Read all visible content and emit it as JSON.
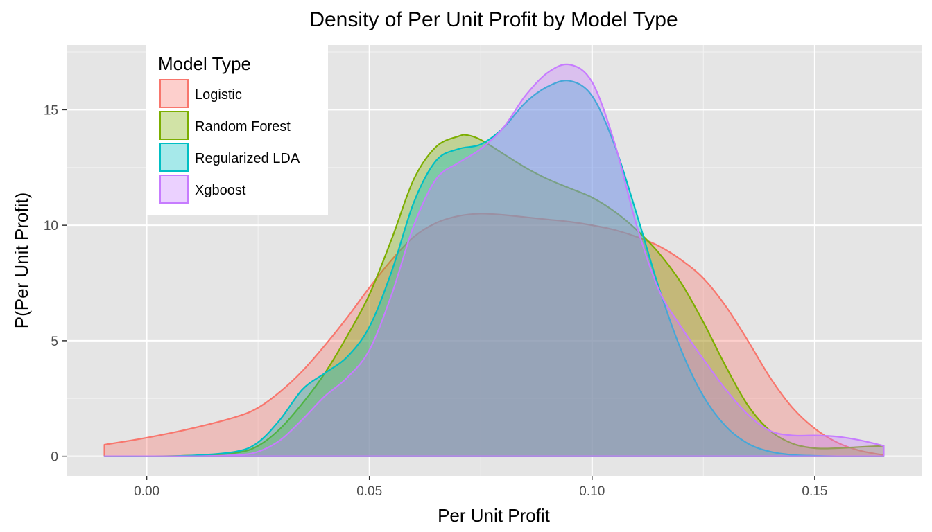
{
  "chart_data": {
    "type": "area",
    "title": "Density of Per Unit Profit by Model Type",
    "xlabel": "Per Unit Profit",
    "ylabel": "P(Per Unit Profit)",
    "xlim": [
      -0.018,
      0.174
    ],
    "ylim": [
      -0.85,
      17.8
    ],
    "x_ticks": [
      0.0,
      0.05,
      0.1,
      0.15
    ],
    "x_tick_labels": [
      "0.00",
      "0.05",
      "0.10",
      "0.15"
    ],
    "y_ticks": [
      0,
      5,
      10,
      15
    ],
    "y_tick_labels": [
      "0",
      "5",
      "10",
      "15"
    ],
    "grid": true,
    "legend": {
      "title": "Model Type",
      "placement": "top-left"
    },
    "series": [
      {
        "name": "Logistic",
        "color": "#F8766D",
        "x": [
          -0.0095,
          0.0,
          0.01,
          0.02,
          0.025,
          0.03,
          0.035,
          0.04,
          0.045,
          0.05,
          0.055,
          0.06,
          0.065,
          0.07,
          0.075,
          0.08,
          0.085,
          0.09,
          0.095,
          0.1,
          0.105,
          0.11,
          0.115,
          0.12,
          0.125,
          0.13,
          0.135,
          0.14,
          0.145,
          0.15,
          0.155,
          0.16,
          0.1655
        ],
        "y": [
          0.5,
          0.8,
          1.2,
          1.7,
          2.1,
          2.8,
          3.7,
          4.8,
          6.0,
          7.3,
          8.5,
          9.5,
          10.1,
          10.4,
          10.5,
          10.45,
          10.35,
          10.25,
          10.15,
          10.0,
          9.8,
          9.5,
          9.1,
          8.5,
          7.7,
          6.5,
          5.0,
          3.4,
          2.1,
          1.2,
          0.6,
          0.25,
          0.05
        ]
      },
      {
        "name": "Random Forest",
        "color": "#7CAE00",
        "x": [
          -0.0095,
          0.0,
          0.01,
          0.02,
          0.025,
          0.03,
          0.035,
          0.04,
          0.045,
          0.05,
          0.055,
          0.06,
          0.065,
          0.07,
          0.072,
          0.075,
          0.08,
          0.085,
          0.09,
          0.095,
          0.1,
          0.105,
          0.11,
          0.115,
          0.12,
          0.125,
          0.13,
          0.135,
          0.14,
          0.145,
          0.15,
          0.155,
          0.16,
          0.1655
        ],
        "y": [
          0.0,
          0.0,
          0.03,
          0.15,
          0.45,
          1.2,
          2.3,
          3.6,
          5.2,
          7.0,
          9.4,
          12.0,
          13.4,
          13.85,
          13.9,
          13.7,
          13.1,
          12.5,
          12.0,
          11.6,
          11.2,
          10.6,
          9.8,
          8.8,
          7.5,
          5.8,
          3.9,
          2.2,
          1.1,
          0.55,
          0.35,
          0.35,
          0.4,
          0.45
        ]
      },
      {
        "name": "Regularized LDA",
        "color": "#00BFC4",
        "x": [
          -0.0095,
          0.0,
          0.01,
          0.02,
          0.025,
          0.03,
          0.035,
          0.04,
          0.045,
          0.05,
          0.055,
          0.06,
          0.065,
          0.07,
          0.075,
          0.08,
          0.085,
          0.09,
          0.095,
          0.1,
          0.105,
          0.11,
          0.115,
          0.12,
          0.125,
          0.13,
          0.135,
          0.14,
          0.145,
          0.15,
          0.155,
          0.16,
          0.1655
        ],
        "y": [
          0.0,
          0.0,
          0.03,
          0.2,
          0.6,
          1.6,
          2.9,
          3.6,
          4.3,
          5.6,
          8.0,
          11.0,
          12.8,
          13.3,
          13.5,
          14.2,
          15.3,
          16.0,
          16.25,
          15.6,
          13.5,
          10.5,
          7.3,
          4.6,
          2.6,
          1.3,
          0.55,
          0.2,
          0.06,
          0.02,
          0.0,
          0.0,
          0.0
        ]
      },
      {
        "name": "Xgboost",
        "color": "#C77CFF",
        "x": [
          -0.0095,
          0.0,
          0.01,
          0.02,
          0.025,
          0.03,
          0.035,
          0.04,
          0.045,
          0.05,
          0.055,
          0.06,
          0.065,
          0.07,
          0.075,
          0.08,
          0.085,
          0.09,
          0.095,
          0.1,
          0.105,
          0.11,
          0.115,
          0.12,
          0.125,
          0.13,
          0.135,
          0.14,
          0.145,
          0.15,
          0.155,
          0.16,
          0.1655
        ],
        "y": [
          0.0,
          0.0,
          0.0,
          0.05,
          0.2,
          0.7,
          1.6,
          2.6,
          3.4,
          4.6,
          7.0,
          10.0,
          12.0,
          12.7,
          13.3,
          14.2,
          15.6,
          16.6,
          16.95,
          16.2,
          13.6,
          10.0,
          7.2,
          5.6,
          4.2,
          2.9,
          1.8,
          1.1,
          0.9,
          0.9,
          0.85,
          0.7,
          0.45
        ]
      }
    ]
  }
}
